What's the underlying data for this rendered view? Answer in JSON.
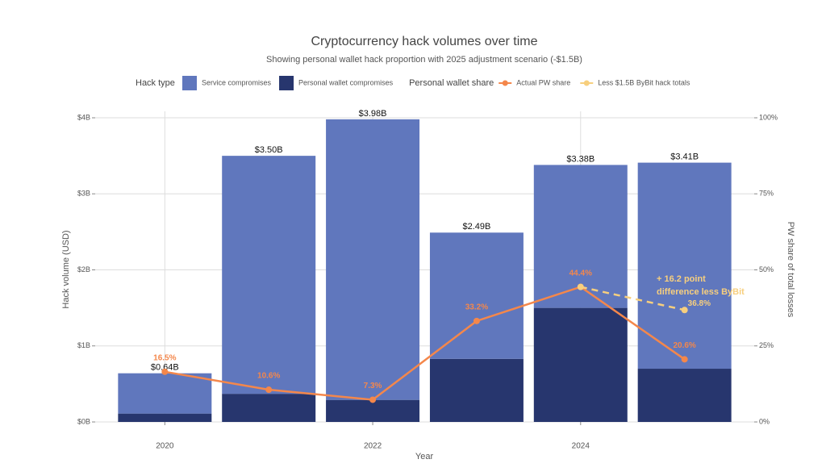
{
  "chart_data": {
    "type": "bar",
    "title": "Cryptocurrency hack volumes over time",
    "subtitle": "Showing personal wallet hack proportion with 2025 adjustment scenario (-$1.5B)",
    "legend_title": "Hack type",
    "legend2_title": "Personal wallet share",
    "xlabel": "Year",
    "ylabel": "Hack volume (USD)",
    "y2label": "PW share of total losses",
    "x": [
      2020,
      2021,
      2022,
      2023,
      2024,
      2025
    ],
    "xlim": [
      2019.33,
      2025.67
    ],
    "xticks": [
      2020,
      2022,
      2024
    ],
    "ylim": [
      0,
      4
    ],
    "yticks": [
      {
        "value": 0,
        "label": "$0B"
      },
      {
        "value": 1,
        "label": "$1B"
      },
      {
        "value": 2,
        "label": "$2B"
      },
      {
        "value": 3,
        "label": "$3B"
      },
      {
        "value": 4,
        "label": "$4B"
      }
    ],
    "y2lim": [
      0,
      100
    ],
    "y2ticks": [
      {
        "value": 0,
        "label": "0%"
      },
      {
        "value": 25,
        "label": "25%"
      },
      {
        "value": 50,
        "label": "50%"
      },
      {
        "value": 75,
        "label": "75%"
      },
      {
        "value": 100,
        "label": "100%"
      }
    ],
    "grid": true,
    "series": [
      {
        "name": "Service compromises",
        "type": "bar",
        "color": "#6077bd",
        "values": [
          0.53,
          3.13,
          3.69,
          1.66,
          1.88,
          2.71
        ]
      },
      {
        "name": "Personal wallet compromises",
        "type": "bar",
        "color": "#27366e",
        "values": [
          0.11,
          0.37,
          0.29,
          0.83,
          1.5,
          0.7
        ]
      },
      {
        "name": "Actual PW share",
        "type": "line",
        "axis": "y2",
        "color": "#f4874b",
        "values": [
          16.5,
          10.6,
          7.3,
          33.2,
          44.4,
          20.6
        ],
        "value_labels": [
          "16.5%",
          "10.6%",
          "7.3%",
          "33.2%",
          "44.4%",
          "20.6%"
        ]
      },
      {
        "name": "Less $1.5B ByBit hack totals",
        "type": "line",
        "axis": "y2",
        "dashed": true,
        "color": "#f7cf7e",
        "values": [
          null,
          null,
          null,
          null,
          44.4,
          36.8
        ],
        "value_labels": [
          null,
          null,
          null,
          null,
          null,
          "36.8%"
        ]
      }
    ],
    "totals": [
      0.64,
      3.5,
      3.98,
      2.49,
      3.38,
      3.41
    ],
    "total_labels": [
      "$0.64B",
      "$3.50B",
      "$3.98B",
      "$2.49B",
      "$3.38B",
      "$3.41B"
    ],
    "annotation": [
      "+ 16.2 point",
      "difference less ByBit"
    ]
  }
}
